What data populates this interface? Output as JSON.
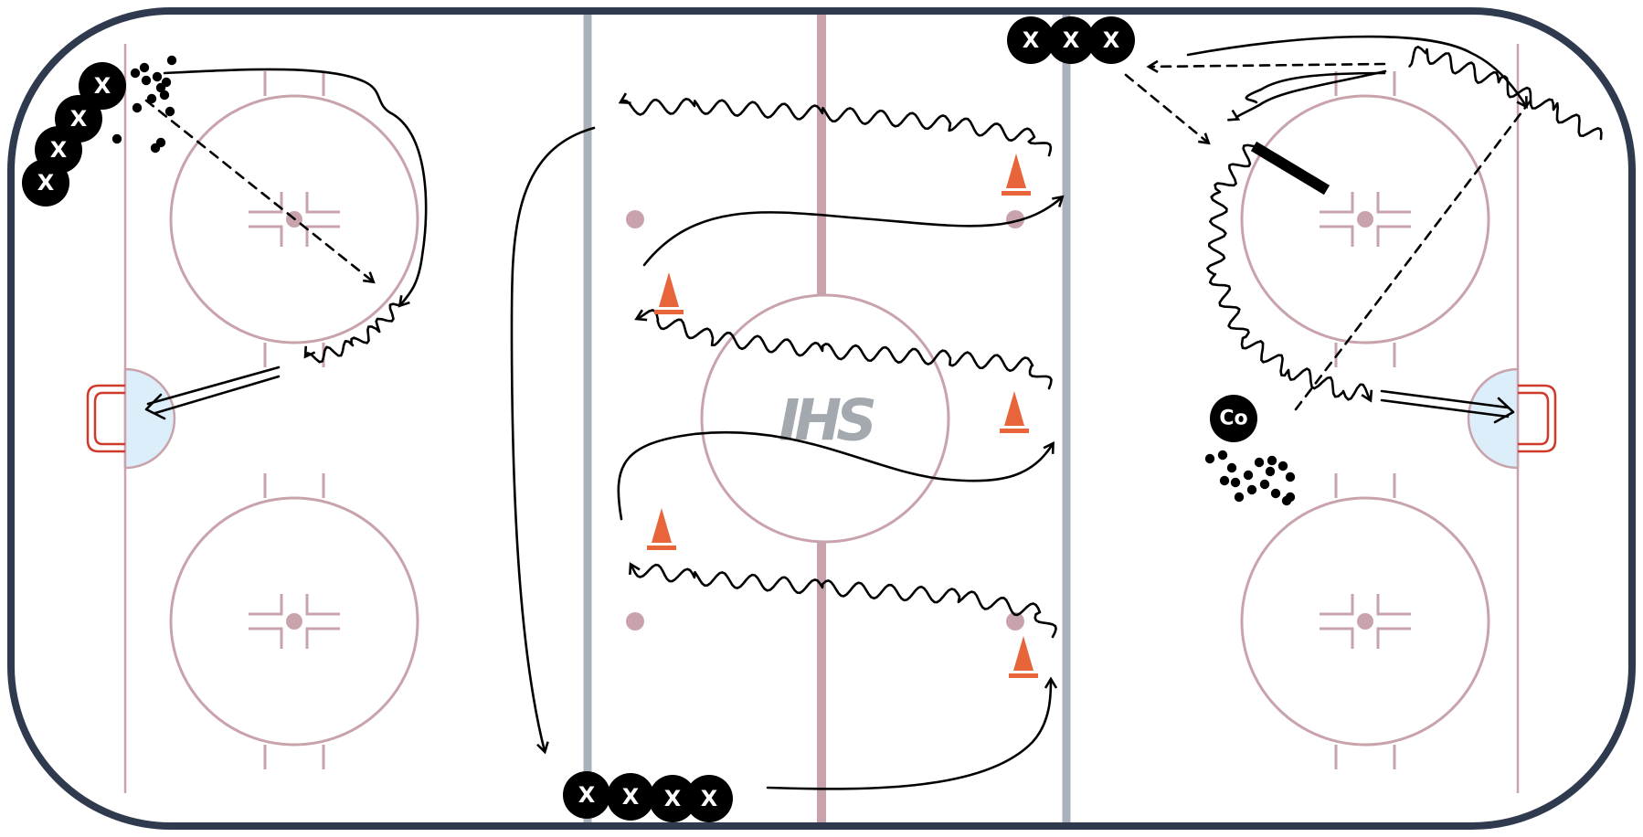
{
  "logo": {
    "text": "IHS",
    "color": "#a3a9ae"
  },
  "players": {
    "label": "X",
    "coach_label": "Co"
  },
  "colors": {
    "boards": "#2f3a4f",
    "rink_lines": "#c9a3ab",
    "blue_lines": "#a9b2bb",
    "center_line": "#c9a3ab",
    "crease": "#dbeefa",
    "net": "#d03a2a",
    "cone": "#e8643a",
    "player": "#000000",
    "paths": "#000000"
  },
  "markers": {
    "cone_icon": "traffic-cone",
    "puck_icon": "puck-pile",
    "player_icon": "x-player",
    "coach_icon": "coach-player",
    "obstacle_icon": "stick-bar"
  }
}
